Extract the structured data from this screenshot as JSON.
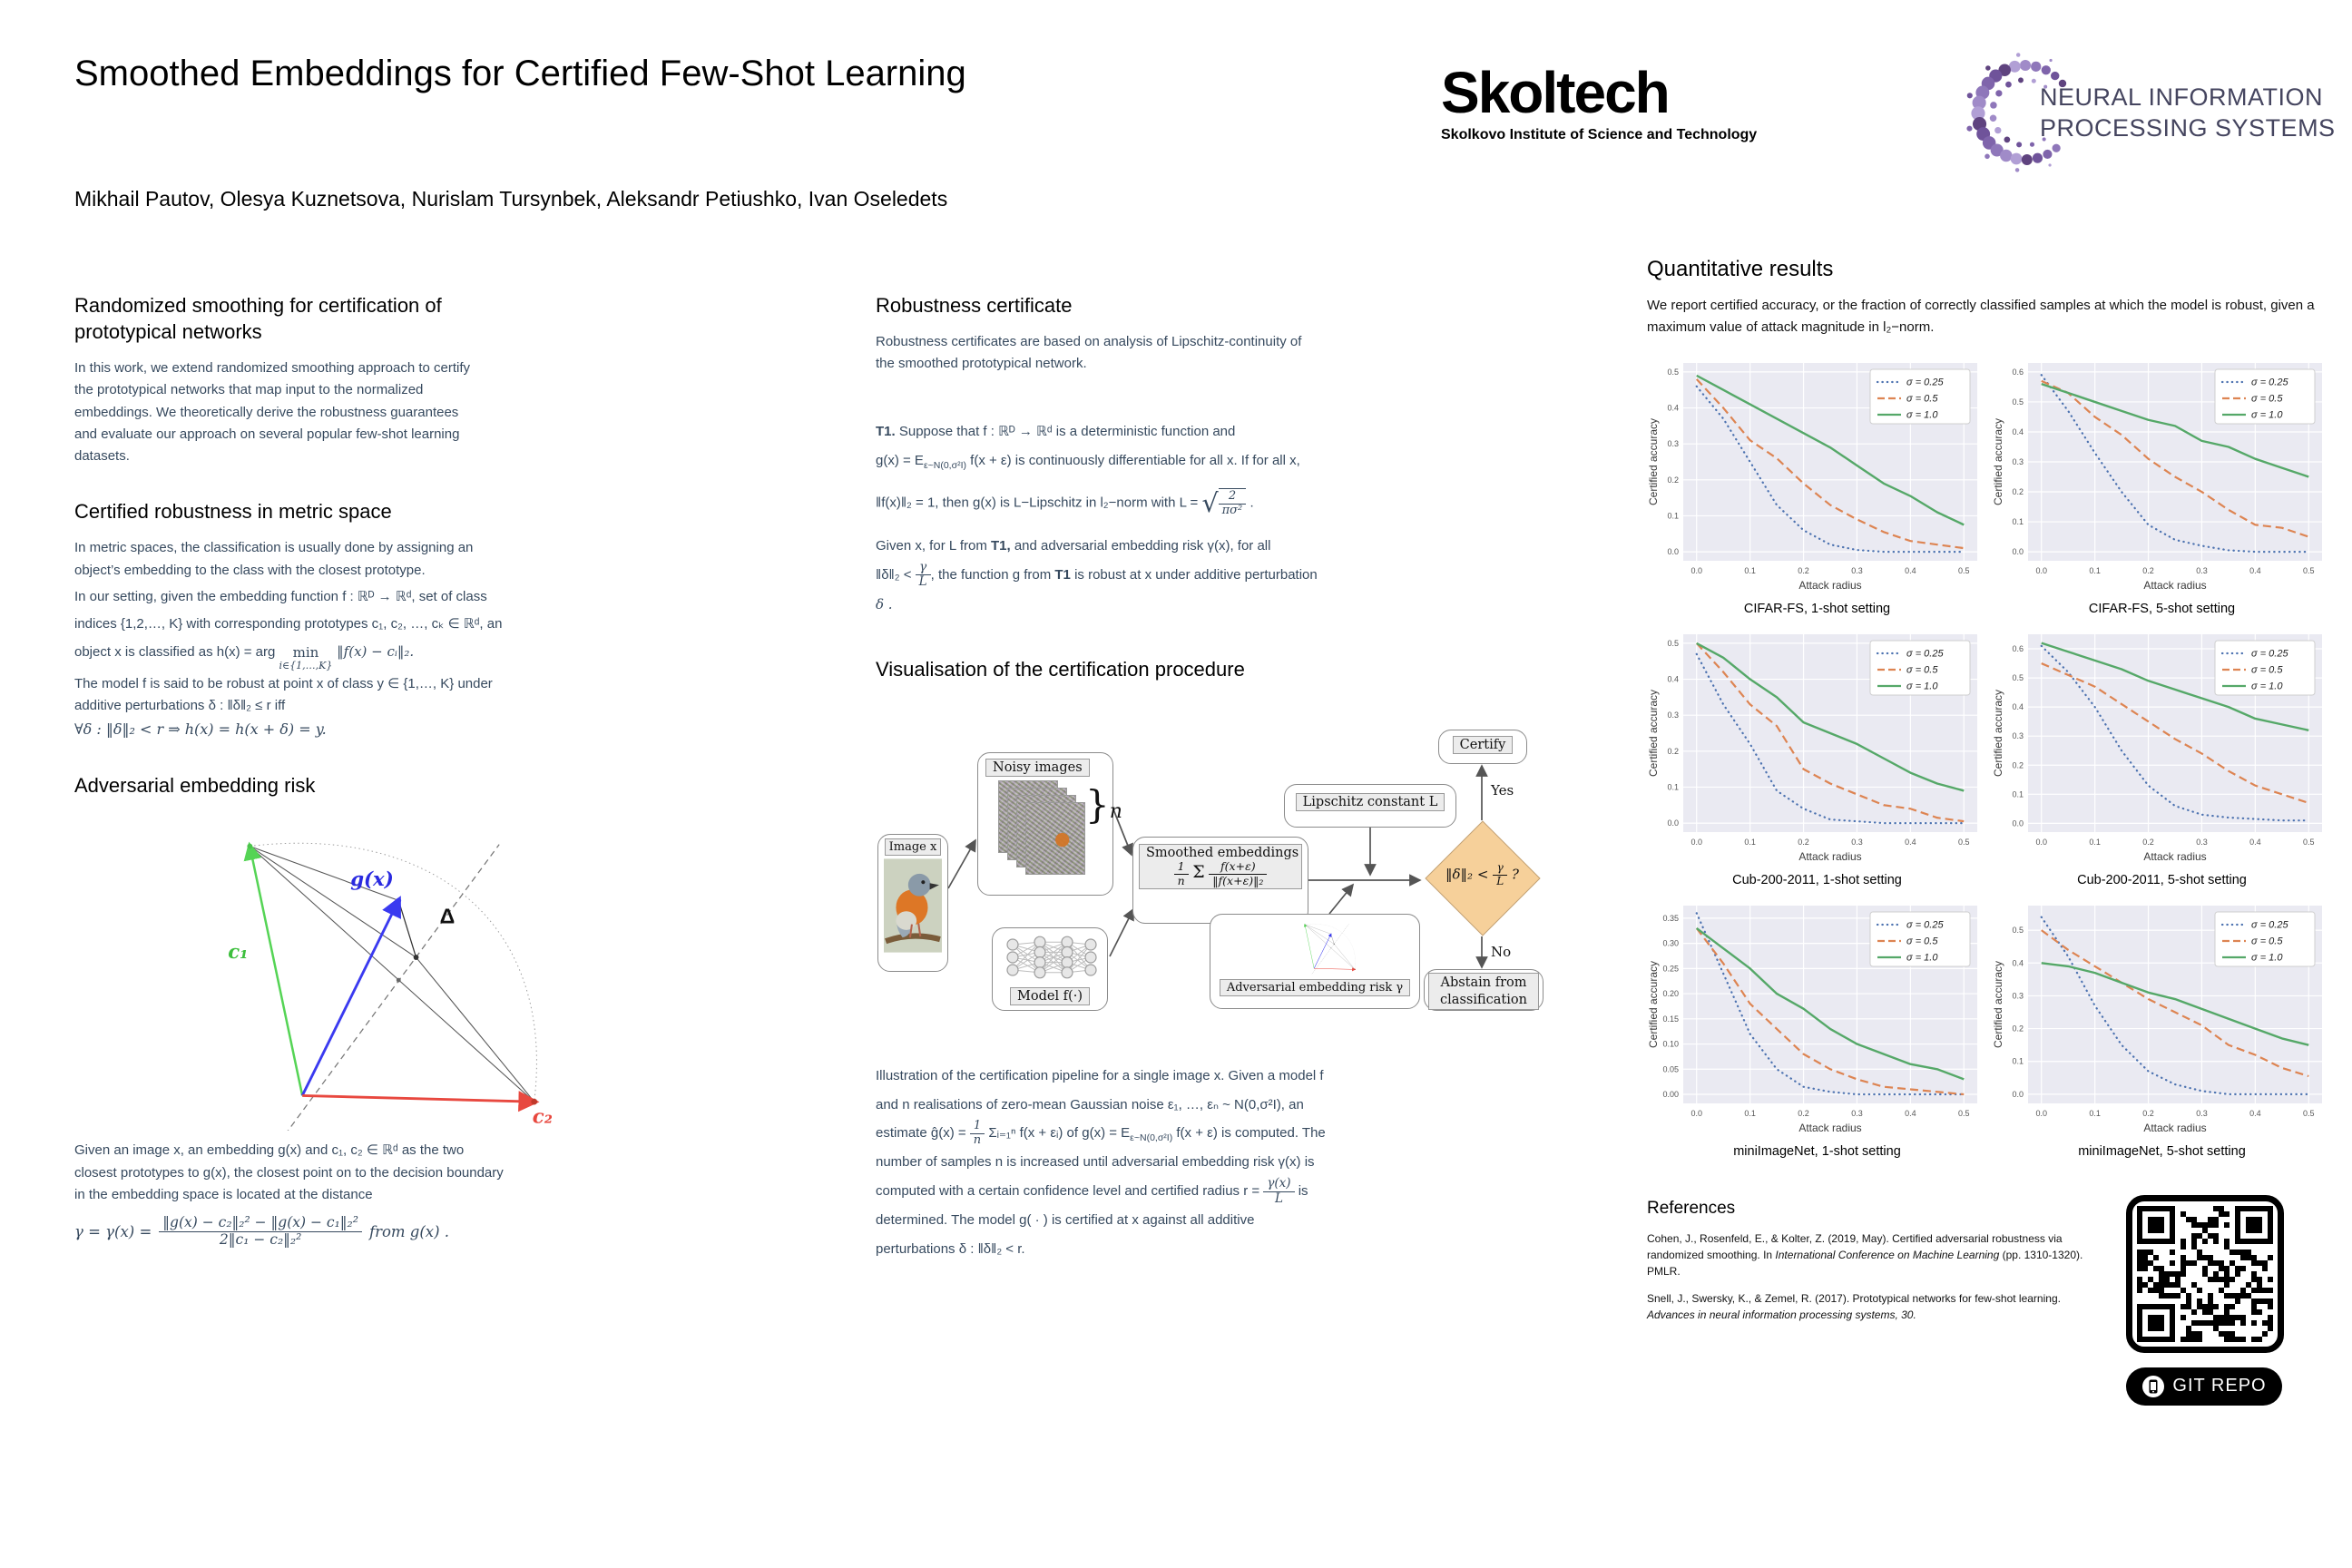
{
  "poster": {
    "title": "Smoothed Embeddings for Certified Few-Shot Learning",
    "authors": "Mikhail Pautov, Olesya Kuznetsova, Nurislam Tursynbek, Aleksandr Petiushko, Ivan Oseledets"
  },
  "logos": {
    "skoltech_name": "Skoltech",
    "skoltech_sub": "Skolkovo Institute of Science and Technology",
    "neurips_line1": "NEURAL INFORMATION",
    "neurips_line2": "PROCESSING SYSTEMS"
  },
  "left": {
    "s1": {
      "heading": "Randomized smoothing for certification of prototypical networks",
      "body": "In this work, we extend randomized smoothing approach to certify the prototypical networks that map input to the normalized embeddings. We theoretically derive the robustness guarantees and evaluate our approach on several popular few-shot learning datasets."
    },
    "s2": {
      "heading": "Certified robustness in metric space",
      "p1": "In metric spaces, the classification is usually done by assigning an object’s embedding to the class with the closest prototype.",
      "p2_pre": "In our setting, given the embedding function f : ℝᴰ → ℝᵈ, set of class indices {1,2,…, K} with corresponding prototypes c₁, c₂, …, cₖ ∈ ℝᵈ, an object x is classified as h(x) = arg ",
      "p2_min": "min",
      "p2_under": "i∈{1,…,K}",
      "p2_post": " ‖f(x) − cᵢ‖₂.",
      "p3": "The model f is said to be robust at point x of class y ∈ {1,…, K} under additive perturbations δ : ‖δ‖₂ ≤ r iff",
      "p4": "∀δ : ‖δ‖₂ < r ⇒ h(x) = h(x + δ) = y."
    },
    "s3": {
      "heading": "Adversarial embedding risk",
      "fig": {
        "c1": "c₁",
        "gx": "g(x)",
        "delta": "Δ",
        "c2": "c₂"
      },
      "p1": "Given an image x,  an embedding g(x) and c₁, c₂ ∈ ℝᵈ as the two closest prototypes to g(x),  the closest point on to the decision boundary in the embedding space is located at the distance",
      "f_lead": "γ = γ(x) =",
      "f_num": "‖g(x) − c₂‖₂² − ‖g(x) − c₁‖₂²",
      "f_den": "2‖c₁ − c₂‖₂²",
      "f_tail": "from g(x) ."
    }
  },
  "middle": {
    "m1": {
      "heading": "Robustness certificate",
      "body": "Robustness certificates are based on analysis of Lipschitz-continuity of the smoothed prototypical network."
    },
    "t1": {
      "tag": "T1.",
      "l1": " Suppose that f : ℝᴰ → ℝᵈ is a deterministic function and",
      "l2_pre": "g(x) = E",
      "l2_sub": "ε~N(0,σ²I)",
      "l2_post": " f(x + ε) is continuously differentiable for all x. If for all x,",
      "l3_pre": "‖f(x)‖₂ = 1, then g(x) is L−Lipschitz in l₂−norm with L = ",
      "sqrt_num": "2",
      "sqrt_den": "πσ²",
      "l3_post": " .",
      "l4_pre": "Given x, for L from ",
      "l4_b1": "T1,",
      "l4_mid": " and adversarial embedding risk γ(x), for all ",
      "l5_pre": "‖δ‖₂ < ",
      "l5_num": "γ",
      "l5_den": "L",
      "l5_mid": ", the function g from ",
      "l5_b2": "T1",
      "l5_post": " is robust at x under additive perturbation",
      "l6": "δ ."
    },
    "m3": {
      "heading": "Visualisation of the certification procedure"
    },
    "flow": {
      "image_label": "Image x",
      "noisy_label": "Noisy images",
      "n_label": "n",
      "model_label": "Model f(·)",
      "smooth_title": "Smoothed embeddings",
      "sf1_num": "1",
      "sf1_den": "n",
      "sum": "Σ",
      "sf2_num": "f(x+ε)",
      "sf2_den": "‖f(x+ε)‖₂",
      "lipschitz_label": "Lipschitz constant L",
      "risk_label": "Adversarial embedding risk γ",
      "d_pre": "‖δ‖₂ < ",
      "d_num": "γ",
      "d_den": "L",
      "d_q": " ?",
      "certify": "Certify",
      "yes": "Yes",
      "no": "No",
      "abstain": "Abstain from classification"
    },
    "m4": {
      "seg1": "Illustration of the certification pipeline for a single image x. Given a model f and n realisations of zero-mean Gaussian noise ε₁, …, εₙ ~ N(0,σ²I), an estimate ĝ(x) = ",
      "f1_num": "1",
      "f1_den": "n",
      "seg2": " Σᵢ₌₁ⁿ f(x + εᵢ) of g(x) = E",
      "sub": "ε~N(0,σ²I)",
      "seg3": " f(x + ε)  is computed. The number of samples n is increased until adversarial embedding risk γ(x) is computed with a certain confidence level and certified radius r = ",
      "f2_num": "γ(x)",
      "f2_den": "L",
      "seg4": " is determined. The model g( · ) is certified at x against all additive perturbations δ : ‖δ‖₂ < r."
    }
  },
  "right": {
    "heading": "Quantitative results",
    "body": "We report certified accuracy, or the fraction of correctly classified samples at which the model is robust, given a maximum value of attack magnitude in l₂−norm.",
    "references": {
      "heading": "References",
      "r1_pre": "Cohen, J., Rosenfeld, E., & Kolter, Z. (2019, May). Certified adversarial robustness via randomized smoothing. In ",
      "r1_it": "International Conference on Machine Learning",
      "r1_post": " (pp. 1310-1320). PMLR.",
      "r2_pre": "Snell, J., Swersky, K., & Zemel, R. (2017). Prototypical networks for few-shot learning. ",
      "r2_it": "Advances in neural information processing systems, 30."
    },
    "git_label": "GIT REPO"
  },
  "chart_data": [
    {
      "type": "line",
      "title": "CIFAR-FS, 1-shot setting",
      "xlabel": "Attack radius",
      "ylabel": "Certified accuracy",
      "x": [
        0,
        0.05,
        0.1,
        0.15,
        0.2,
        0.25,
        0.3,
        0.35,
        0.4,
        0.45,
        0.5
      ],
      "xticks": [
        "0.0",
        "0.1",
        "0.2",
        "0.3",
        "0.4",
        "0.5"
      ],
      "yticks": [
        "0.0",
        "0.1",
        "0.2",
        "0.3",
        "0.4",
        "0.5"
      ],
      "xlim": [
        -0.025,
        0.525
      ],
      "ylim": [
        -0.025,
        0.525
      ],
      "grid": true,
      "legend_position": "upper right",
      "series": [
        {
          "name": "σ = 0.25",
          "style": "dotted",
          "color": "#4C72B0",
          "values": [
            0.46,
            0.37,
            0.25,
            0.13,
            0.06,
            0.02,
            0.005,
            0.0,
            0.0,
            0.0,
            0.0
          ]
        },
        {
          "name": "σ = 0.5",
          "style": "dashed",
          "color": "#DD8452",
          "values": [
            0.48,
            0.4,
            0.31,
            0.26,
            0.19,
            0.13,
            0.09,
            0.055,
            0.03,
            0.02,
            0.01
          ]
        },
        {
          "name": "σ = 1.0",
          "style": "solid",
          "color": "#55A868",
          "values": [
            0.49,
            0.45,
            0.41,
            0.37,
            0.33,
            0.29,
            0.24,
            0.19,
            0.155,
            0.11,
            0.075
          ]
        }
      ]
    },
    {
      "type": "line",
      "title": "CIFAR-FS, 5-shot setting",
      "xlabel": "Attack radius",
      "ylabel": "Certified accuracy",
      "x": [
        0,
        0.05,
        0.1,
        0.15,
        0.2,
        0.25,
        0.3,
        0.35,
        0.4,
        0.45,
        0.5
      ],
      "xticks": [
        "0.0",
        "0.1",
        "0.2",
        "0.3",
        "0.4",
        "0.5"
      ],
      "yticks": [
        "0.0",
        "0.1",
        "0.2",
        "0.3",
        "0.4",
        "0.5",
        "0.6"
      ],
      "xlim": [
        -0.025,
        0.525
      ],
      "ylim": [
        -0.03,
        0.63
      ],
      "grid": true,
      "legend_position": "upper right",
      "series": [
        {
          "name": "σ = 0.25",
          "style": "dotted",
          "color": "#4C72B0",
          "values": [
            0.59,
            0.47,
            0.33,
            0.2,
            0.09,
            0.04,
            0.02,
            0.005,
            0.0,
            0.0,
            0.0
          ]
        },
        {
          "name": "σ = 0.5",
          "style": "dashed",
          "color": "#DD8452",
          "values": [
            0.57,
            0.53,
            0.45,
            0.39,
            0.31,
            0.25,
            0.2,
            0.14,
            0.09,
            0.08,
            0.05
          ]
        },
        {
          "name": "σ = 1.0",
          "style": "solid",
          "color": "#55A868",
          "values": [
            0.56,
            0.53,
            0.5,
            0.47,
            0.44,
            0.42,
            0.37,
            0.35,
            0.31,
            0.28,
            0.25
          ]
        }
      ]
    },
    {
      "type": "line",
      "title": "Cub-200-2011, 1-shot setting",
      "xlabel": "Attack radius",
      "ylabel": "Certified accuracy",
      "x": [
        0,
        0.05,
        0.1,
        0.15,
        0.2,
        0.25,
        0.3,
        0.35,
        0.4,
        0.45,
        0.5
      ],
      "xticks": [
        "0.0",
        "0.1",
        "0.2",
        "0.3",
        "0.4",
        "0.5"
      ],
      "yticks": [
        "0.0",
        "0.1",
        "0.2",
        "0.3",
        "0.4",
        "0.5"
      ],
      "xlim": [
        -0.025,
        0.525
      ],
      "ylim": [
        -0.025,
        0.525
      ],
      "grid": true,
      "legend_position": "upper right",
      "series": [
        {
          "name": "σ = 0.25",
          "style": "dotted",
          "color": "#4C72B0",
          "values": [
            0.47,
            0.33,
            0.22,
            0.09,
            0.04,
            0.01,
            0.005,
            0.0,
            0.0,
            0.0,
            0.0
          ]
        },
        {
          "name": "σ = 0.5",
          "style": "dashed",
          "color": "#DD8452",
          "values": [
            0.5,
            0.42,
            0.33,
            0.27,
            0.15,
            0.11,
            0.08,
            0.05,
            0.04,
            0.015,
            0.005
          ]
        },
        {
          "name": "σ = 1.0",
          "style": "solid",
          "color": "#55A868",
          "values": [
            0.5,
            0.46,
            0.4,
            0.35,
            0.28,
            0.25,
            0.22,
            0.18,
            0.14,
            0.11,
            0.09
          ]
        }
      ]
    },
    {
      "type": "line",
      "title": "Cub-200-2011, 5-shot setting",
      "xlabel": "Attack radius",
      "ylabel": "Certified accuracy",
      "x": [
        0,
        0.05,
        0.1,
        0.15,
        0.2,
        0.25,
        0.3,
        0.35,
        0.4,
        0.45,
        0.5
      ],
      "xticks": [
        "0.0",
        "0.1",
        "0.2",
        "0.3",
        "0.4",
        "0.5"
      ],
      "yticks": [
        "0.0",
        "0.1",
        "0.2",
        "0.3",
        "0.4",
        "0.5",
        "0.6"
      ],
      "xlim": [
        -0.025,
        0.525
      ],
      "ylim": [
        -0.03,
        0.65
      ],
      "grid": true,
      "legend_position": "upper right",
      "series": [
        {
          "name": "σ = 0.25",
          "style": "dotted",
          "color": "#4C72B0",
          "values": [
            0.61,
            0.52,
            0.4,
            0.25,
            0.13,
            0.06,
            0.03,
            0.02,
            0.015,
            0.01,
            0.01
          ]
        },
        {
          "name": "σ = 0.5",
          "style": "dashed",
          "color": "#DD8452",
          "values": [
            0.55,
            0.51,
            0.47,
            0.41,
            0.35,
            0.29,
            0.24,
            0.18,
            0.13,
            0.1,
            0.07
          ]
        },
        {
          "name": "σ = 1.0",
          "style": "solid",
          "color": "#55A868",
          "values": [
            0.62,
            0.59,
            0.56,
            0.53,
            0.49,
            0.46,
            0.43,
            0.4,
            0.36,
            0.34,
            0.32
          ]
        }
      ]
    },
    {
      "type": "line",
      "title": "miniImageNet, 1-shot setting",
      "xlabel": "Attack radius",
      "ylabel": "Certified accuracy",
      "x": [
        0,
        0.05,
        0.1,
        0.15,
        0.2,
        0.25,
        0.3,
        0.35,
        0.4,
        0.45,
        0.5
      ],
      "xticks": [
        "0.0",
        "0.1",
        "0.2",
        "0.3",
        "0.4",
        "0.5"
      ],
      "yticks": [
        "0.00",
        "0.05",
        "0.10",
        "0.15",
        "0.20",
        "0.25",
        "0.30",
        "0.35"
      ],
      "xlim": [
        -0.025,
        0.525
      ],
      "ylim": [
        -0.018,
        0.375
      ],
      "grid": true,
      "legend_position": "upper right",
      "series": [
        {
          "name": "σ = 0.25",
          "style": "dotted",
          "color": "#4C72B0",
          "values": [
            0.36,
            0.24,
            0.12,
            0.05,
            0.015,
            0.005,
            0.0,
            0.0,
            0.0,
            0.0,
            0.0
          ]
        },
        {
          "name": "σ = 0.5",
          "style": "dashed",
          "color": "#DD8452",
          "values": [
            0.33,
            0.26,
            0.18,
            0.13,
            0.08,
            0.05,
            0.03,
            0.015,
            0.01,
            0.005,
            0.0
          ]
        },
        {
          "name": "σ = 1.0",
          "style": "solid",
          "color": "#55A868",
          "values": [
            0.33,
            0.29,
            0.25,
            0.2,
            0.17,
            0.13,
            0.1,
            0.08,
            0.06,
            0.05,
            0.03
          ]
        }
      ]
    },
    {
      "type": "line",
      "title": "miniImageNet, 5-shot setting",
      "xlabel": "Attack radius",
      "ylabel": "Certified accuracy",
      "x": [
        0,
        0.05,
        0.1,
        0.15,
        0.2,
        0.25,
        0.3,
        0.35,
        0.4,
        0.45,
        0.5
      ],
      "xticks": [
        "0.0",
        "0.1",
        "0.2",
        "0.3",
        "0.4",
        "0.5"
      ],
      "yticks": [
        "0.0",
        "0.1",
        "0.2",
        "0.3",
        "0.4",
        "0.5"
      ],
      "xlim": [
        -0.025,
        0.525
      ],
      "ylim": [
        -0.028,
        0.575
      ],
      "grid": true,
      "legend_position": "upper right",
      "series": [
        {
          "name": "σ = 0.25",
          "style": "dotted",
          "color": "#4C72B0",
          "values": [
            0.54,
            0.42,
            0.27,
            0.15,
            0.07,
            0.03,
            0.01,
            0.0,
            0.0,
            0.0,
            0.0
          ]
        },
        {
          "name": "σ = 0.5",
          "style": "dashed",
          "color": "#DD8452",
          "values": [
            0.5,
            0.44,
            0.39,
            0.34,
            0.29,
            0.25,
            0.21,
            0.15,
            0.12,
            0.08,
            0.055
          ]
        },
        {
          "name": "σ = 1.0",
          "style": "solid",
          "color": "#55A868",
          "values": [
            0.4,
            0.39,
            0.37,
            0.34,
            0.31,
            0.29,
            0.26,
            0.23,
            0.2,
            0.17,
            0.15
          ]
        }
      ]
    }
  ]
}
